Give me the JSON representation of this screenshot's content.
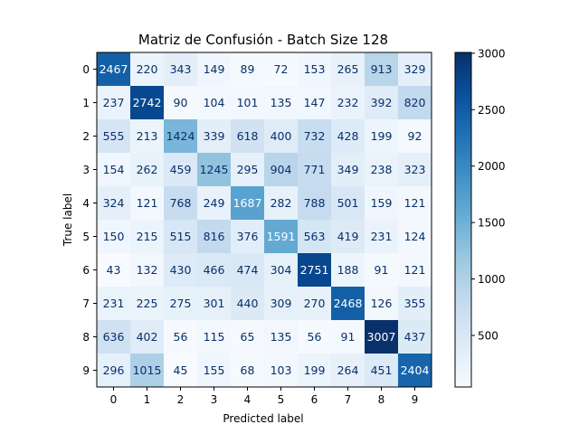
{
  "chart_data": {
    "type": "heatmap",
    "title": "Matriz de Confusión - Batch Size 128",
    "xlabel": "Predicted label",
    "ylabel": "True label",
    "x_categories": [
      "0",
      "1",
      "2",
      "3",
      "4",
      "5",
      "6",
      "7",
      "8",
      "9"
    ],
    "y_categories": [
      "0",
      "1",
      "2",
      "3",
      "4",
      "5",
      "6",
      "7",
      "8",
      "9"
    ],
    "values": [
      [
        2467,
        220,
        343,
        149,
        89,
        72,
        153,
        265,
        913,
        329
      ],
      [
        237,
        2742,
        90,
        104,
        101,
        135,
        147,
        232,
        392,
        820
      ],
      [
        555,
        213,
        1424,
        339,
        618,
        400,
        732,
        428,
        199,
        92
      ],
      [
        154,
        262,
        459,
        1245,
        295,
        904,
        771,
        349,
        238,
        323
      ],
      [
        324,
        121,
        768,
        249,
        1687,
        282,
        788,
        501,
        159,
        121
      ],
      [
        150,
        215,
        515,
        816,
        376,
        1591,
        563,
        419,
        231,
        124
      ],
      [
        43,
        132,
        430,
        466,
        474,
        304,
        2751,
        188,
        91,
        121
      ],
      [
        231,
        225,
        275,
        301,
        440,
        309,
        270,
        2468,
        126,
        355
      ],
      [
        636,
        402,
        56,
        115,
        65,
        135,
        56,
        91,
        3007,
        437
      ],
      [
        296,
        1015,
        45,
        155,
        68,
        103,
        199,
        264,
        451,
        2404
      ]
    ],
    "colormap": "Blues",
    "color_range": [
      43,
      3007
    ],
    "colorbar_ticks": [
      500,
      1000,
      1500,
      2000,
      2500,
      3000
    ],
    "colorbar_tick_labels": [
      "500",
      "1000",
      "1500",
      "2000",
      "2500",
      "3000"
    ],
    "grid": false
  }
}
